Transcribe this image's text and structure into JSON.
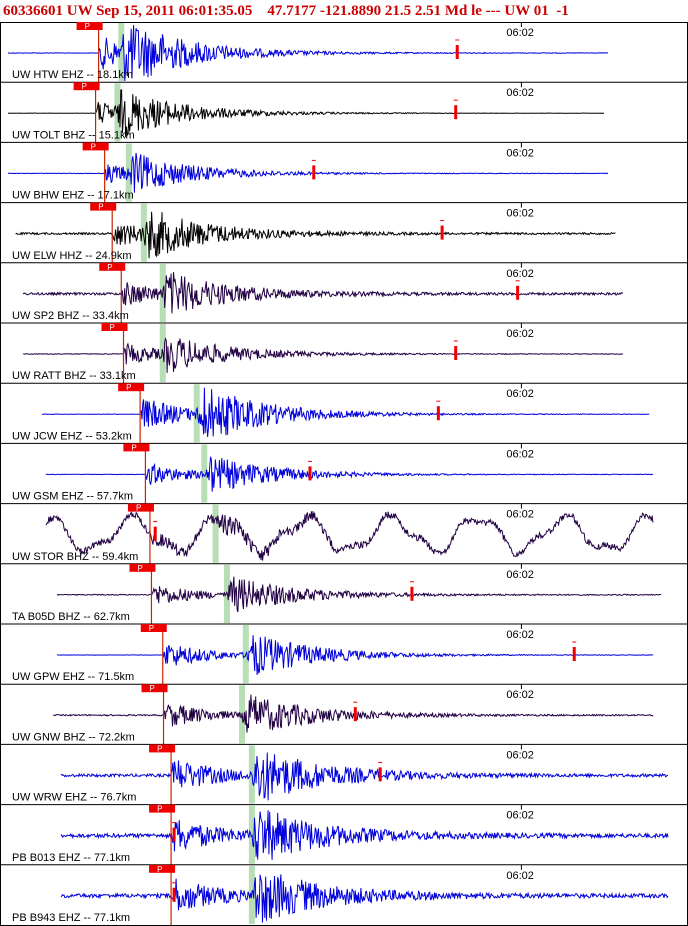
{
  "header": {
    "event_id": "60336601",
    "network": "UW",
    "datetime": "Sep 15, 2011 06:01:35.05",
    "lat": "47.7177",
    "lon": "-121.8890",
    "depth": "21.5",
    "magnitude": "2.51",
    "mag_type": "Md",
    "type": "le",
    "sep": "---",
    "source": "UW",
    "version": "01",
    "trail": "-1"
  },
  "chart_data": {
    "type": "line",
    "title": "60336601 UW Sep 15, 2011 06:01:35.05    47.7177 -121.8890 21.5 2.51 Md le --- UW 01  -1",
    "time_tick_label": "06:02",
    "time_tick_at_s": 60,
    "xlim_s": [
      -8,
      77
    ],
    "pick_label": "P",
    "colors": {
      "blue": "#0000dd",
      "black": "#000000",
      "purple": "#220044",
      "pick_box": "#ee0000",
      "pick_line": "#cc2200",
      "s_band": "#aad8a8",
      "marker": "#ee0000",
      "separator": "#000000"
    },
    "traces": [
      {
        "label": "UW HTW EHZ -- 18.1km",
        "color": "blue",
        "p_s": 4.0,
        "s_s": 7.0,
        "coda_s": 51.5,
        "end_s": 71.5,
        "amp": 1.0,
        "noise": 0.03,
        "start_s": -8.0
      },
      {
        "label": "UW TOLT BHZ -- 15.1km",
        "color": "black",
        "p_s": 3.6,
        "s_s": 6.5,
        "coda_s": 51.3,
        "end_s": 71.0,
        "amp": 0.7,
        "noise": 0.02,
        "start_s": -8.0
      },
      {
        "label": "UW BHW EHZ -- 17.1km",
        "color": "blue",
        "p_s": 4.8,
        "s_s": 8.0,
        "coda_s": 32.5,
        "end_s": 71.5,
        "amp": 0.6,
        "noise": 0.03,
        "start_s": -8.0
      },
      {
        "label": "UW ELW HHZ -- 24.9km",
        "color": "black",
        "p_s": 5.8,
        "s_s": 10.0,
        "coda_s": 49.5,
        "end_s": 72.5,
        "amp": 0.75,
        "noise": 0.12,
        "start_s": -7.0
      },
      {
        "label": "UW SP2 BHZ -- 33.4km",
        "color": "purple",
        "p_s": 7.0,
        "s_s": 12.5,
        "coda_s": 59.5,
        "end_s": 73.5,
        "amp": 0.7,
        "noise": 0.15,
        "start_s": -6.0
      },
      {
        "label": "UW RATT BHZ -- 33.1km",
        "color": "purple",
        "p_s": 7.3,
        "s_s": 12.5,
        "coda_s": 51.3,
        "end_s": 73.5,
        "amp": 0.6,
        "noise": 0.04,
        "start_s": -6.0
      },
      {
        "label": "UW JCW EHZ -- 53.2km",
        "color": "blue",
        "p_s": 9.5,
        "s_s": 17.0,
        "coda_s": 49.0,
        "end_s": 77.0,
        "amp": 1.0,
        "noise": 0.03,
        "start_s": -3.5
      },
      {
        "label": "UW GSM EHZ -- 57.7km",
        "color": "blue",
        "p_s": 10.2,
        "s_s": 18.0,
        "coda_s": 32.0,
        "end_s": 77.5,
        "amp": 0.65,
        "noise": 0.03,
        "start_s": -3.0
      },
      {
        "label": "UW STOR BHZ -- 59.4km",
        "color": "purple",
        "p_s": 10.8,
        "s_s": 19.5,
        "coda_s": 11.5,
        "end_s": 77.5,
        "amp": 0.55,
        "noise": 0.9,
        "start_s": -3.0
      },
      {
        "label": "TA B05D BHZ -- 62.7km",
        "color": "purple",
        "p_s": 11.0,
        "s_s": 21.0,
        "coda_s": 45.5,
        "end_s": 78.5,
        "amp": 0.65,
        "noise": 0.06,
        "start_s": -1.5
      },
      {
        "label": "UW GPW EHZ -- 71.5km",
        "color": "blue",
        "p_s": 12.5,
        "s_s": 23.5,
        "coda_s": 67.0,
        "end_s": 77.5,
        "amp": 0.8,
        "noise": 0.02,
        "start_s": -1.5
      },
      {
        "label": "UW GNW BHZ -- 72.2km",
        "color": "purple",
        "p_s": 12.6,
        "s_s": 23.0,
        "coda_s": 38.0,
        "end_s": 77.5,
        "amp": 0.75,
        "noise": 0.08,
        "start_s": -2.0
      },
      {
        "label": "UW WRW EHZ -- 76.7km",
        "color": "blue",
        "p_s": 13.6,
        "s_s": 24.3,
        "coda_s": 41.3,
        "end_s": 79.5,
        "amp": 1.0,
        "noise": 0.18,
        "start_s": -1.0
      },
      {
        "label": "PB B013 EHZ -- 77.1km",
        "color": "blue",
        "p_s": 13.6,
        "s_s": 24.3,
        "coda_s": 14.0,
        "end_s": 79.5,
        "amp": 1.0,
        "noise": 0.25,
        "start_s": -1.0
      },
      {
        "label": "PB B943 EHZ -- 77.1km",
        "color": "blue",
        "p_s": 13.6,
        "s_s": 24.3,
        "coda_s": 14.0,
        "end_s": 79.5,
        "amp": 1.0,
        "noise": 0.25,
        "start_s": -1.0
      }
    ]
  }
}
